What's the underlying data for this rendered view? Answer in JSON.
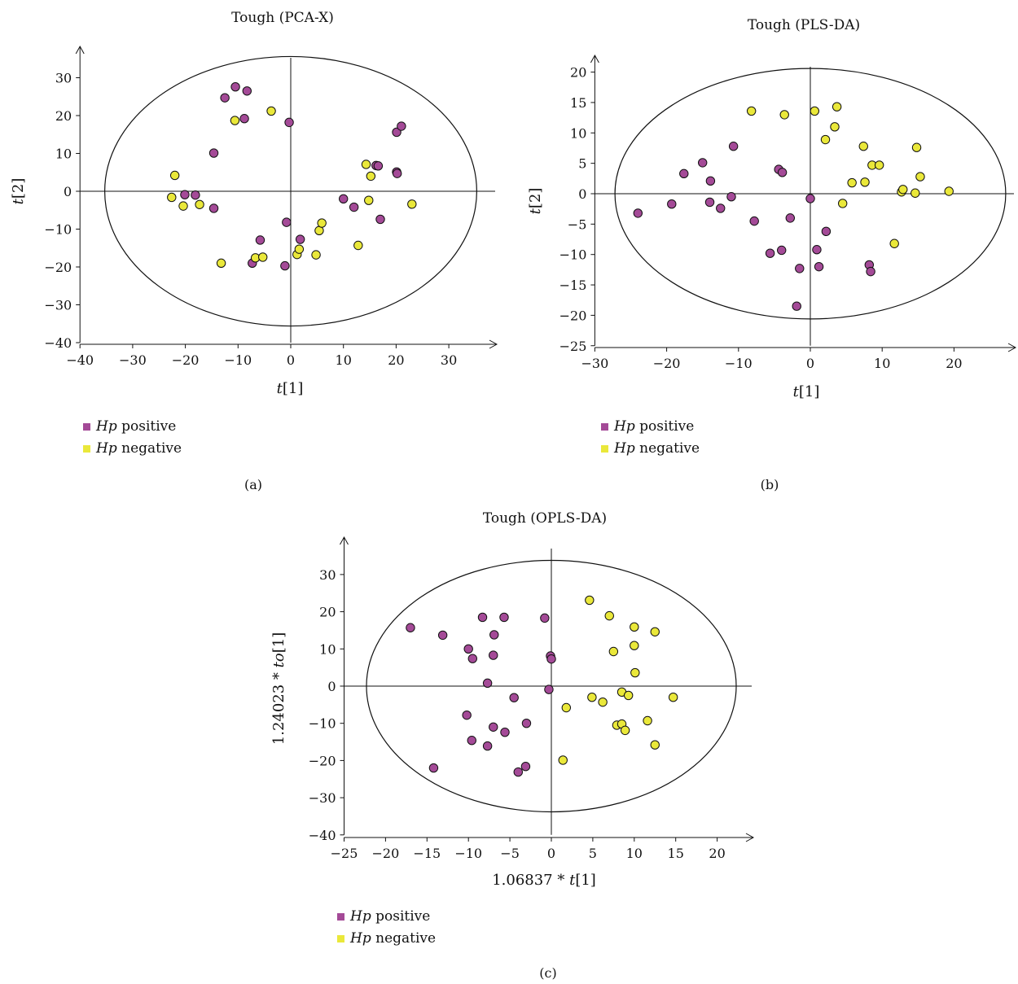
{
  "colors": {
    "positive": "#a44a97",
    "negative": "#eae83a"
  },
  "panels": [
    {
      "title": "Tough (PCA-X)",
      "panel_label": "(a)",
      "legend": [
        {
          "italic": "Hp",
          "rest": " positive",
          "color": "#a44a97"
        },
        {
          "italic": "Hp",
          "rest": " negative",
          "color": "#eae83a"
        }
      ]
    },
    {
      "title": "Tough (PLS-DA)",
      "panel_label": "(b)",
      "legend": [
        {
          "italic": "Hp",
          "rest": " positive",
          "color": "#a44a97"
        },
        {
          "italic": "Hp",
          "rest": " negative",
          "color": "#eae83a"
        }
      ]
    },
    {
      "title": "Tough (OPLS-DA)",
      "panel_label": "(c)",
      "legend": [
        {
          "italic": "Hp",
          "rest": " positive",
          "color": "#a44a97"
        },
        {
          "italic": "Hp",
          "rest": " negative",
          "color": "#eae83a"
        }
      ]
    }
  ],
  "chart_data": [
    {
      "type": "scatter",
      "title": "Tough (PCA-X)",
      "xlabel": "t[1]",
      "ylabel": "t[2]",
      "xlim": [
        -40,
        38
      ],
      "ylim": [
        -40,
        38
      ],
      "xticks": [
        -40,
        -30,
        -20,
        -10,
        0,
        10,
        20,
        30
      ],
      "yticks": [
        -40,
        -30,
        -20,
        -10,
        0,
        10,
        20,
        30
      ],
      "ellipse": {
        "rx": 35.3,
        "ry": 35.6
      },
      "legend_position": "bottom-left",
      "series": [
        {
          "name": "Hp positive",
          "color": "#a44a97",
          "points": [
            [
              -10.5,
              27.6
            ],
            [
              -12.5,
              24.7
            ],
            [
              -8.3,
              26.5
            ],
            [
              -8.8,
              19.2
            ],
            [
              -0.3,
              18.2
            ],
            [
              -14.6,
              10.1
            ],
            [
              -14.6,
              -4.5
            ],
            [
              -20.1,
              -0.9
            ],
            [
              -18.1,
              -1.0
            ],
            [
              -5.8,
              -12.9
            ],
            [
              -7.3,
              -19.0
            ],
            [
              -0.8,
              -8.2
            ],
            [
              1.8,
              -12.7
            ],
            [
              -1.1,
              -19.7
            ],
            [
              10.0,
              -2.0
            ],
            [
              12.0,
              -4.2
            ],
            [
              16.2,
              6.8
            ],
            [
              16.6,
              6.7
            ],
            [
              20.1,
              15.6
            ],
            [
              21.0,
              17.2
            ],
            [
              20.1,
              5.1
            ],
            [
              20.2,
              4.7
            ],
            [
              17.0,
              -7.4
            ]
          ]
        },
        {
          "name": "Hp negative",
          "color": "#eae83a",
          "points": [
            [
              -22.0,
              4.2
            ],
            [
              -22.6,
              -1.6
            ],
            [
              -20.4,
              -3.9
            ],
            [
              -17.3,
              -3.5
            ],
            [
              -10.6,
              18.7
            ],
            [
              -3.7,
              21.2
            ],
            [
              -13.2,
              -19.0
            ],
            [
              -6.7,
              -17.6
            ],
            [
              -5.3,
              -17.4
            ],
            [
              1.2,
              -16.7
            ],
            [
              1.6,
              -15.3
            ],
            [
              4.8,
              -16.8
            ],
            [
              5.4,
              -10.4
            ],
            [
              5.9,
              -8.4
            ],
            [
              12.8,
              -14.3
            ],
            [
              14.3,
              7.1
            ],
            [
              15.2,
              4.0
            ],
            [
              14.8,
              -2.4
            ],
            [
              23.0,
              -3.4
            ]
          ]
        }
      ]
    },
    {
      "type": "scatter",
      "title": "Tough (PLS-DA)",
      "xlabel": "t[1]",
      "ylabel": "t[2]",
      "xlim": [
        -30,
        28
      ],
      "ylim": [
        -25,
        22
      ],
      "xticks": [
        -30,
        -20,
        -10,
        0,
        10,
        20
      ],
      "yticks": [
        -25,
        -20,
        -15,
        -10,
        -5,
        0,
        5,
        10,
        15,
        20
      ],
      "ellipse": {
        "rx": 27.2,
        "ry": 20.6
      },
      "legend_position": "bottom-left",
      "series": [
        {
          "name": "Hp positive",
          "color": "#a44a97",
          "points": [
            [
              -24.0,
              -3.2
            ],
            [
              -19.3,
              -1.7
            ],
            [
              -17.6,
              3.3
            ],
            [
              -15.0,
              5.1
            ],
            [
              -13.9,
              2.1
            ],
            [
              -14.0,
              -1.4
            ],
            [
              -12.5,
              -2.4
            ],
            [
              -11.0,
              -0.5
            ],
            [
              -10.7,
              7.8
            ],
            [
              -7.8,
              -4.5
            ],
            [
              -4.4,
              4.0
            ],
            [
              -3.9,
              3.5
            ],
            [
              -2.8,
              -4.0
            ],
            [
              -5.6,
              -9.8
            ],
            [
              -4.0,
              -9.3
            ],
            [
              -1.5,
              -12.3
            ],
            [
              -1.9,
              -18.5
            ],
            [
              0.0,
              -0.8
            ],
            [
              0.9,
              -9.2
            ],
            [
              1.2,
              -12.0
            ],
            [
              2.2,
              -6.2
            ],
            [
              8.2,
              -11.7
            ],
            [
              8.4,
              -12.8
            ]
          ]
        },
        {
          "name": "Hp negative",
          "color": "#eae83a",
          "points": [
            [
              -8.2,
              13.6
            ],
            [
              -3.6,
              13.0
            ],
            [
              0.6,
              13.6
            ],
            [
              3.7,
              14.3
            ],
            [
              3.4,
              11.0
            ],
            [
              2.1,
              8.9
            ],
            [
              7.4,
              7.8
            ],
            [
              8.6,
              4.7
            ],
            [
              9.6,
              4.7
            ],
            [
              7.6,
              1.9
            ],
            [
              5.8,
              1.8
            ],
            [
              4.5,
              -1.6
            ],
            [
              12.7,
              0.3
            ],
            [
              12.9,
              0.7
            ],
            [
              14.6,
              0.1
            ],
            [
              14.8,
              7.6
            ],
            [
              15.3,
              2.8
            ],
            [
              19.3,
              0.4
            ],
            [
              11.7,
              -8.2
            ]
          ]
        }
      ]
    },
    {
      "type": "scatter",
      "title": "Tough (OPLS-DA)",
      "xlabel": "1.06837 * t[1]",
      "ylabel": "1.24023 * to[1]",
      "xlim": [
        -25,
        24
      ],
      "ylim": [
        -40,
        38
      ],
      "xticks": [
        -25,
        -20,
        -15,
        -10,
        -5,
        0,
        5,
        10,
        15,
        20
      ],
      "yticks": [
        -40,
        -30,
        -20,
        -10,
        0,
        10,
        20,
        30
      ],
      "ellipse": {
        "rx": 22.3,
        "ry": 33.8
      },
      "legend_position": "bottom-left",
      "series": [
        {
          "name": "Hp positive",
          "color": "#a44a97",
          "points": [
            [
              -17.0,
              15.7
            ],
            [
              -13.1,
              13.7
            ],
            [
              -10.0,
              10.0
            ],
            [
              -9.5,
              7.4
            ],
            [
              -8.3,
              18.5
            ],
            [
              -5.7,
              18.5
            ],
            [
              -6.9,
              13.8
            ],
            [
              -7.0,
              8.3
            ],
            [
              -7.7,
              0.8
            ],
            [
              -4.5,
              -3.1
            ],
            [
              -0.8,
              18.3
            ],
            [
              -0.1,
              8.1
            ],
            [
              0.0,
              7.3
            ],
            [
              -0.3,
              -0.9
            ],
            [
              -10.2,
              -7.8
            ],
            [
              -9.6,
              -14.6
            ],
            [
              -7.7,
              -16.1
            ],
            [
              -7.0,
              -11.0
            ],
            [
              -5.6,
              -12.4
            ],
            [
              -3.0,
              -10.0
            ],
            [
              -14.2,
              -22.0
            ],
            [
              -3.1,
              -21.6
            ],
            [
              -4.0,
              -23.1
            ]
          ]
        },
        {
          "name": "Hp negative",
          "color": "#eae83a",
          "points": [
            [
              4.6,
              23.1
            ],
            [
              7.0,
              18.9
            ],
            [
              10.0,
              15.9
            ],
            [
              12.5,
              14.6
            ],
            [
              7.5,
              9.3
            ],
            [
              10.0,
              10.9
            ],
            [
              10.1,
              3.6
            ],
            [
              4.9,
              -3.0
            ],
            [
              6.2,
              -4.3
            ],
            [
              8.5,
              -1.6
            ],
            [
              9.3,
              -2.5
            ],
            [
              14.7,
              -3.0
            ],
            [
              1.8,
              -5.8
            ],
            [
              7.9,
              -10.5
            ],
            [
              8.5,
              -10.2
            ],
            [
              8.9,
              -11.9
            ],
            [
              11.6,
              -9.3
            ],
            [
              12.5,
              -15.8
            ],
            [
              1.4,
              -19.9
            ]
          ]
        }
      ]
    }
  ]
}
